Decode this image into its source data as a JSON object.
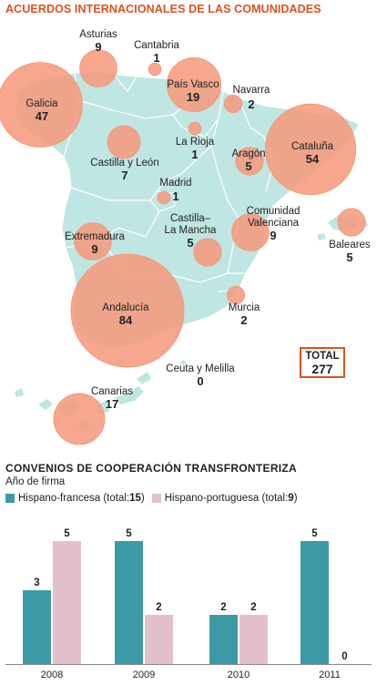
{
  "header": {
    "title": "ACUERDOS INTERNACIONALES DE LAS COMUNIDADES"
  },
  "total": {
    "label": "TOTAL",
    "value": "277"
  },
  "colors": {
    "accent": "#e0501e",
    "bubble": "#f4987a",
    "land": "#bfe6e3",
    "french": "#3b9aa6",
    "portuguese": "#e3bfcd"
  },
  "chart_data": [
    {
      "type": "bubble-map",
      "title": "ACUERDOS INTERNACIONALES DE LAS COMUNIDADES",
      "regions": [
        {
          "name": "Asturias",
          "value": 9
        },
        {
          "name": "Cantabria",
          "value": 1
        },
        {
          "name": "Galicia",
          "value": 47
        },
        {
          "name": "País Vasco",
          "value": 19
        },
        {
          "name": "Navarra",
          "value": 2
        },
        {
          "name": "Castilla y León",
          "value": 7
        },
        {
          "name": "La Rioja",
          "value": 1
        },
        {
          "name": "Aragón",
          "value": 5
        },
        {
          "name": "Cataluña",
          "value": 54
        },
        {
          "name": "Madrid",
          "value": 1
        },
        {
          "name": "Castilla–La Mancha",
          "value": 5
        },
        {
          "name": "Extremadura",
          "value": 9
        },
        {
          "name": "Comunidad Valenciana",
          "value": 9
        },
        {
          "name": "Baleares",
          "value": 5
        },
        {
          "name": "Andalucía",
          "value": 84
        },
        {
          "name": "Murcia",
          "value": 2
        },
        {
          "name": "Ceuta y Melilla",
          "value": 0
        },
        {
          "name": "Canarias",
          "value": 17
        }
      ],
      "total": 277
    },
    {
      "type": "bar",
      "title": "CONVENIOS DE COOPERACIÓN TRANSFRONTERIZA",
      "subtitle": "Año de firma",
      "categories": [
        "2008",
        "2009",
        "2010",
        "2011"
      ],
      "series": [
        {
          "name": "Hispano-francesa",
          "total": 15,
          "values": [
            3,
            5,
            2,
            5
          ]
        },
        {
          "name": "Hispano-portuguesa",
          "total": 9,
          "values": [
            5,
            2,
            2,
            0
          ]
        }
      ],
      "ylim": [
        0,
        5
      ],
      "legend": "top-left",
      "grid": false
    }
  ],
  "labels": {
    "legend_total_prefix": "(total: ",
    "legend_total_suffix": ")"
  }
}
